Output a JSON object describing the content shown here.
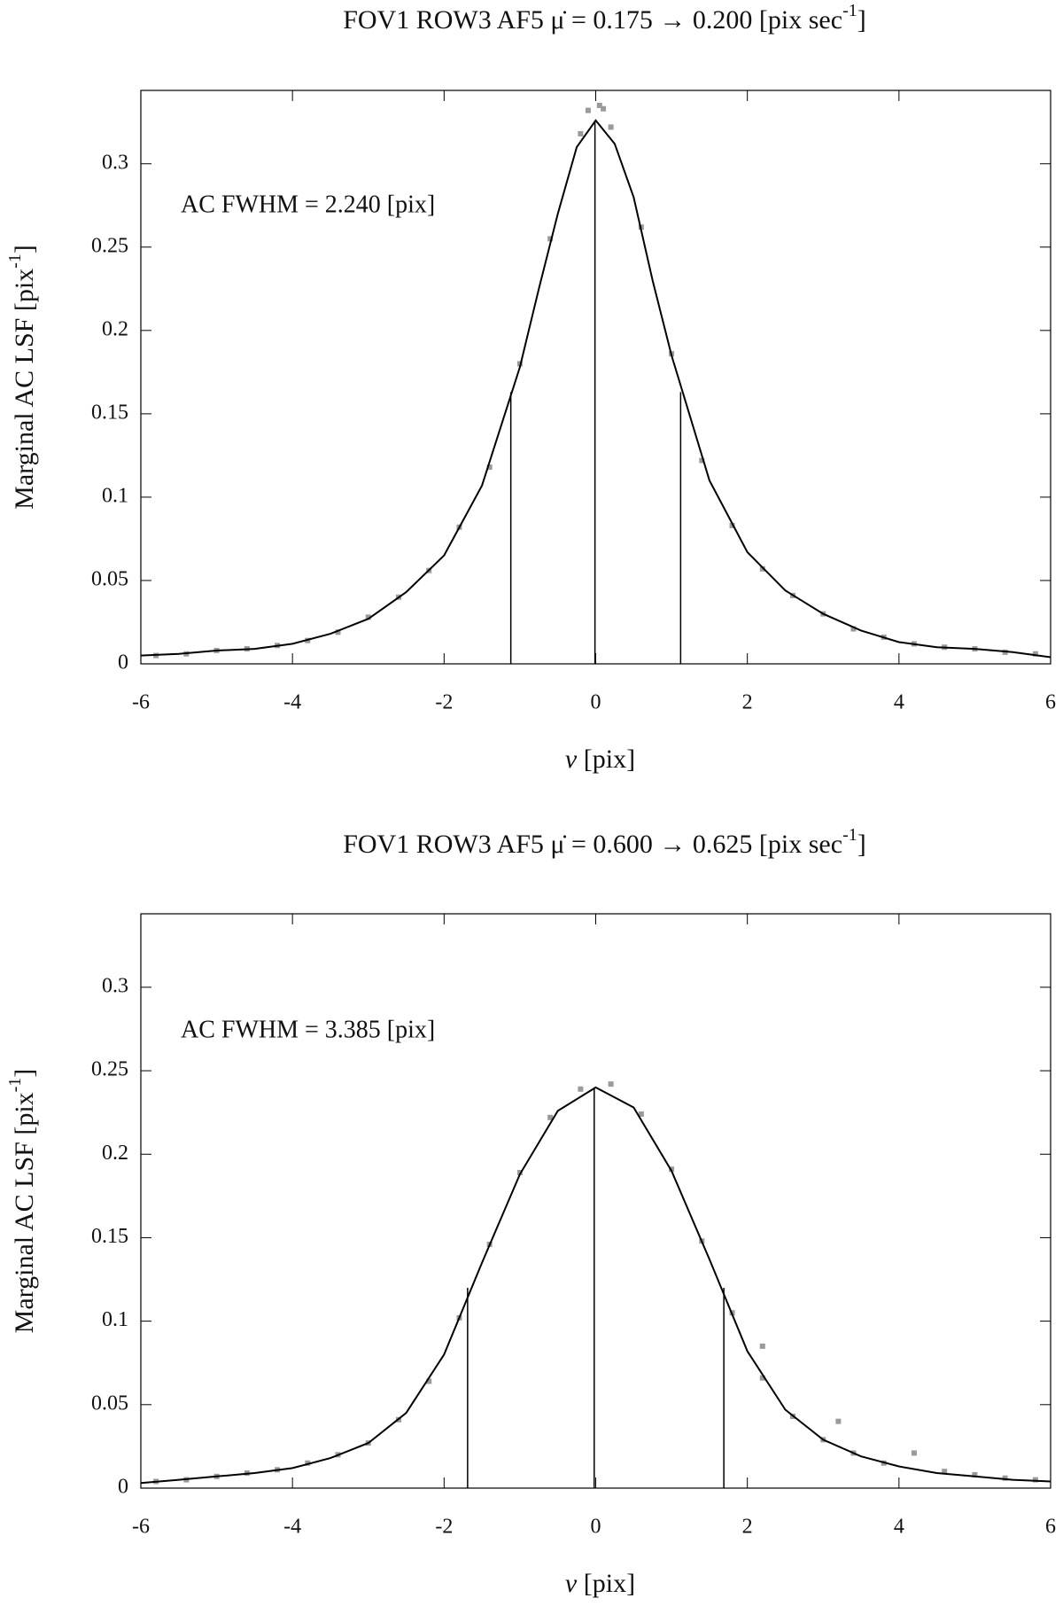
{
  "chart_data": [
    {
      "type": "line",
      "title": [
        "FOV1 ROW3 AF5 μ̇ = 0.175 → 0.200 [pix sec",
        "-1",
        "]"
      ],
      "x_label": [
        "v",
        " [pix]"
      ],
      "y_label": [
        "Marginal AC LSF [pix",
        "-1",
        "]"
      ],
      "annotation": "AC FWHM = 2.240 [pix]",
      "xlim": [
        -6,
        6
      ],
      "xticks": [
        -6,
        -4,
        -2,
        0,
        2,
        4,
        6
      ],
      "ylim": [
        0,
        0.344
      ],
      "yticks": [
        0,
        0.05,
        0.1,
        0.15,
        0.2,
        0.25,
        0.3
      ],
      "series": [
        {
          "type": "scatter",
          "color": "#9a9a9a",
          "x": [
            -5.8,
            -5.4,
            -5.0,
            -4.6,
            -4.2,
            -3.8,
            -3.4,
            -3.0,
            -2.6,
            -2.2,
            -1.8,
            -1.4,
            -1.0,
            -0.6,
            -0.2,
            0.2,
            0.6,
            1.0,
            1.4,
            1.8,
            2.2,
            2.6,
            3.0,
            3.4,
            3.8,
            4.2,
            4.6,
            5.0,
            5.4,
            5.8,
            -0.1,
            0.05,
            0.1
          ],
          "values": [
            0.005,
            0.006,
            0.008,
            0.009,
            0.011,
            0.014,
            0.019,
            0.028,
            0.04,
            0.056,
            0.082,
            0.118,
            0.18,
            0.255,
            0.318,
            0.322,
            0.262,
            0.186,
            0.122,
            0.083,
            0.057,
            0.041,
            0.03,
            0.021,
            0.016,
            0.012,
            0.01,
            0.009,
            0.007,
            0.006,
            0.332,
            0.335,
            0.333
          ]
        },
        {
          "type": "line",
          "color": "#000000",
          "x": [
            -6,
            -5.5,
            -5,
            -4.5,
            -4,
            -3.5,
            -3,
            -2.5,
            -2,
            -1.5,
            -1,
            -0.75,
            -0.5,
            -0.25,
            0,
            0.25,
            0.5,
            0.75,
            1,
            1.5,
            2,
            2.5,
            3,
            3.5,
            4,
            4.5,
            5,
            5.5,
            6
          ],
          "values": [
            0.005,
            0.006,
            0.008,
            0.009,
            0.012,
            0.018,
            0.027,
            0.043,
            0.065,
            0.107,
            0.178,
            0.225,
            0.27,
            0.31,
            0.326,
            0.312,
            0.28,
            0.23,
            0.185,
            0.11,
            0.067,
            0.044,
            0.03,
            0.02,
            0.013,
            0.01,
            0.009,
            0.007,
            0.004
          ]
        }
      ],
      "markers": {
        "x": [
          -1.12,
          -0.01,
          1.12
        ],
        "values": [
          0.163,
          0.326,
          0.163
        ]
      }
    },
    {
      "type": "line",
      "title": [
        "FOV1 ROW3 AF5 μ̇ = 0.600 → 0.625 [pix sec",
        "-1",
        "]"
      ],
      "x_label": [
        "v",
        " [pix]"
      ],
      "y_label": [
        "Marginal AC LSF [pix",
        "-1",
        "]"
      ],
      "annotation": "AC FWHM = 3.385 [pix]",
      "xlim": [
        -6,
        6
      ],
      "xticks": [
        -6,
        -4,
        -2,
        0,
        2,
        4,
        6
      ],
      "ylim": [
        0,
        0.344
      ],
      "yticks": [
        0,
        0.05,
        0.1,
        0.15,
        0.2,
        0.25,
        0.3
      ],
      "series": [
        {
          "type": "scatter",
          "color": "#9a9a9a",
          "x": [
            -5.8,
            -5.4,
            -5.0,
            -4.6,
            -4.2,
            -3.8,
            -3.4,
            -3.0,
            -2.6,
            -2.2,
            -1.8,
            -1.4,
            -1.0,
            -0.6,
            -0.2,
            0.2,
            0.6,
            1.0,
            1.4,
            1.8,
            2.2,
            2.6,
            3.0,
            3.2,
            3.4,
            3.8,
            4.2,
            4.6,
            5.0,
            5.4,
            5.8,
            2.2
          ],
          "values": [
            0.004,
            0.005,
            0.007,
            0.009,
            0.011,
            0.015,
            0.02,
            0.027,
            0.041,
            0.064,
            0.102,
            0.146,
            0.189,
            0.222,
            0.239,
            0.242,
            0.224,
            0.191,
            0.148,
            0.105,
            0.066,
            0.043,
            0.029,
            0.04,
            0.021,
            0.015,
            0.021,
            0.01,
            0.008,
            0.006,
            0.005,
            0.085
          ]
        },
        {
          "type": "line",
          "color": "#000000",
          "x": [
            -6,
            -5.5,
            -5,
            -4.5,
            -4,
            -3.5,
            -3,
            -2.5,
            -2,
            -1.5,
            -1,
            -0.5,
            0,
            0.5,
            1,
            1.5,
            2,
            2.5,
            3,
            3.5,
            4,
            4.5,
            5,
            5.5,
            6
          ],
          "values": [
            0.003,
            0.005,
            0.007,
            0.009,
            0.012,
            0.018,
            0.027,
            0.045,
            0.08,
            0.135,
            0.188,
            0.226,
            0.24,
            0.228,
            0.19,
            0.137,
            0.082,
            0.047,
            0.029,
            0.019,
            0.013,
            0.009,
            0.007,
            0.005,
            0.004
          ]
        }
      ],
      "markers": {
        "x": [
          -1.69,
          -0.02,
          1.69
        ],
        "values": [
          0.12,
          0.24,
          0.12
        ]
      }
    }
  ]
}
